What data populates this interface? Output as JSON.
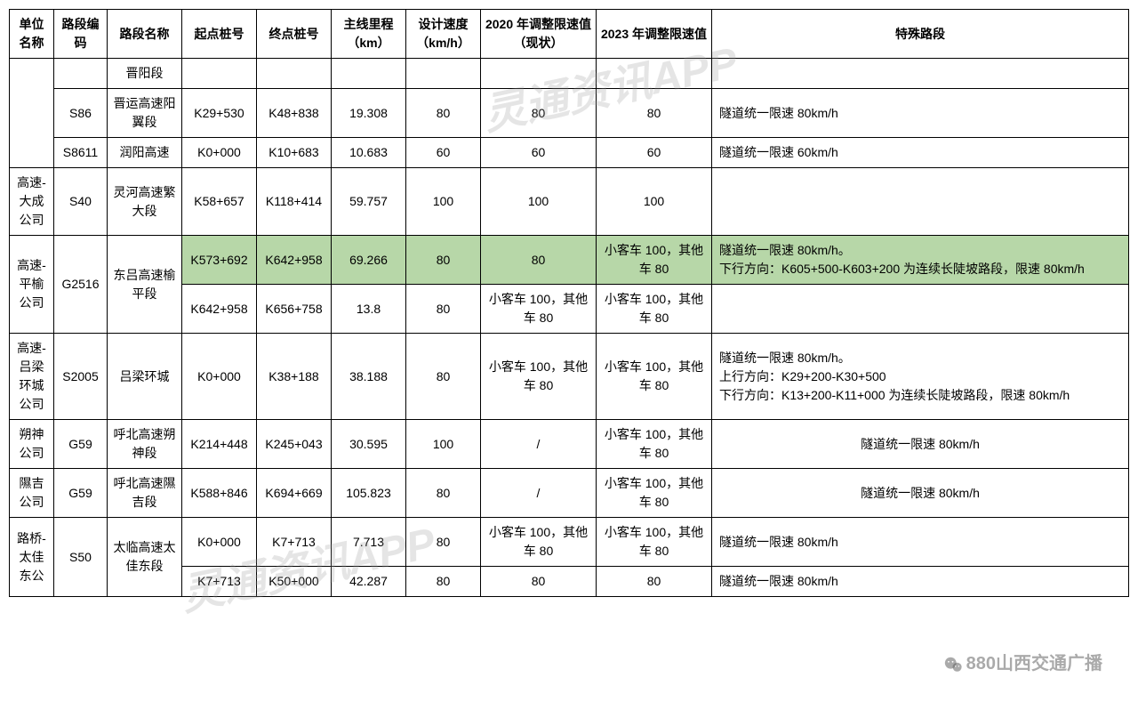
{
  "watermark_text": "灵通资讯APP",
  "source_text": "880山西交通广播",
  "table": {
    "headers": [
      "单位名称",
      "路段编码",
      "路段名称",
      "起点桩号",
      "终点桩号",
      "主线里程（km）",
      "设计速度（km/h）",
      "2020 年调整限速值（现状）",
      "2023 年调整限速值",
      "特殊路段"
    ],
    "highlight_color": "#b7d7a8",
    "rows": [
      {
        "unit": "",
        "unit_rowspan": 3,
        "code": "",
        "name": "晋阳段",
        "start": "",
        "end": "",
        "len": "",
        "speed": "",
        "v2020": "",
        "v2023": "",
        "special": ""
      },
      {
        "code": "S86",
        "name": "晋运高速阳翼段",
        "start": "K29+530",
        "end": "K48+838",
        "len": "19.308",
        "speed": "80",
        "v2020": "80",
        "v2023": "80",
        "special": "隧道统一限速 80km/h",
        "special_align": "left"
      },
      {
        "code": "S8611",
        "name": "润阳高速",
        "start": "K0+000",
        "end": "K10+683",
        "len": "10.683",
        "speed": "60",
        "v2020": "60",
        "v2023": "60",
        "special": "隧道统一限速 60km/h",
        "special_align": "left"
      },
      {
        "unit": "高速-大成公司",
        "code": "S40",
        "name": "灵河高速繁大段",
        "start": "K58+657",
        "end": "K118+414",
        "len": "59.757",
        "speed": "100",
        "v2020": "100",
        "v2023": "100",
        "special": ""
      },
      {
        "unit": "高速-平榆公司",
        "unit_rowspan": 2,
        "code": "G2516",
        "code_rowspan": 2,
        "name": "东吕高速榆平段",
        "name_rowspan": 2,
        "start": "K573+692",
        "end": "K642+958",
        "len": "69.266",
        "speed": "80",
        "v2020": "80",
        "v2023": "小客车 100，其他车 80",
        "special": "隧道统一限速 80km/h。\n下行方向：K605+500-K603+200 为连续长陡坡路段，限速 80km/h",
        "special_align": "left",
        "hl": true
      },
      {
        "start": "K642+958",
        "end": "K656+758",
        "len": "13.8",
        "speed": "80",
        "v2020": "小客车 100，其他车 80",
        "v2023": "小客车 100，其他车 80",
        "special": ""
      },
      {
        "unit": "高速-吕梁环城公司",
        "code": "S2005",
        "name": "吕梁环城",
        "start": "K0+000",
        "end": "K38+188",
        "len": "38.188",
        "speed": "80",
        "v2020": "小客车 100，其他车 80",
        "v2023": "小客车 100，其他车 80",
        "special": "隧道统一限速 80km/h。\n上行方向：K29+200-K30+500\n下行方向：K13+200-K11+000 为连续长陡坡路段，限速 80km/h",
        "special_align": "left"
      },
      {
        "unit": "朔神公司",
        "code": "G59",
        "name": "呼北高速朔神段",
        "start": "K214+448",
        "end": "K245+043",
        "len": "30.595",
        "speed": "100",
        "v2020": "/",
        "v2023": "小客车 100，其他车 80",
        "special": "隧道统一限速 80km/h"
      },
      {
        "unit": "隰吉公司",
        "code": "G59",
        "name": "呼北高速隰吉段",
        "start": "K588+846",
        "end": "K694+669",
        "len": "105.823",
        "speed": "80",
        "v2020": "/",
        "v2023": "小客车 100，其他车 80",
        "special": "隧道统一限速 80km/h"
      },
      {
        "unit": "路桥-太佳东公",
        "unit_rowspan": 2,
        "code": "S50",
        "code_rowspan": 2,
        "name": "太临高速太佳东段",
        "name_rowspan": 2,
        "start": "K0+000",
        "end": "K7+713",
        "len": "7.713",
        "speed": "80",
        "v2020": "小客车 100，其他车 80",
        "v2023": "小客车 100，其他车 80",
        "special": "隧道统一限速 80km/h",
        "special_align": "left"
      },
      {
        "start": "K7+713",
        "end": "K50+000",
        "len": "42.287",
        "speed": "80",
        "v2020": "80",
        "v2023": "80",
        "special": "隧道统一限速 80km/h",
        "special_align": "left"
      }
    ]
  }
}
